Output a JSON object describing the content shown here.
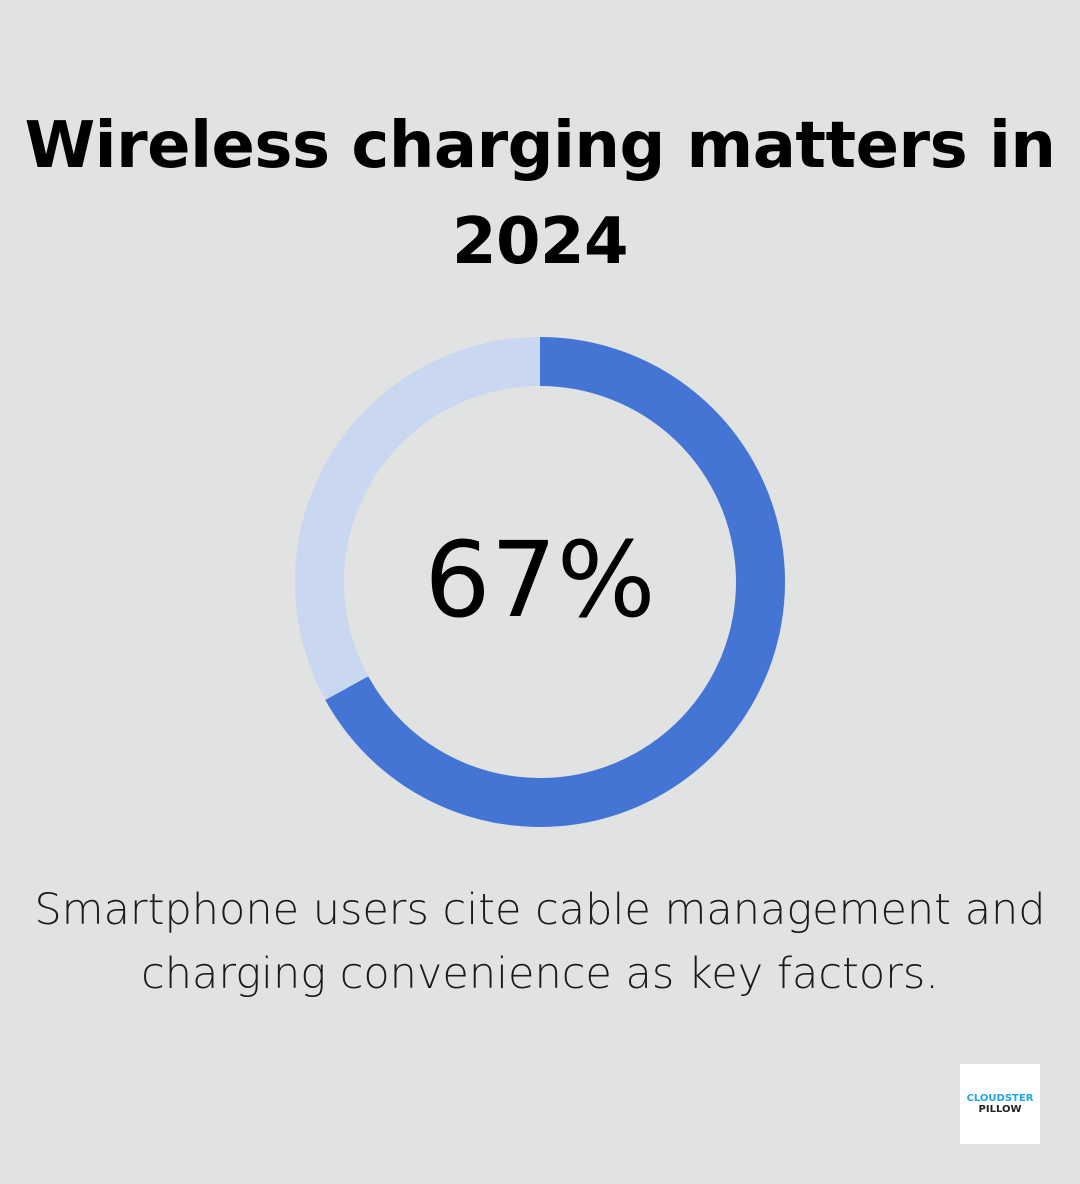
{
  "title": "Wireless charging matters in 2024",
  "caption": "Smartphone users cite cable management and charging convenience as key factors.",
  "logo": {
    "text": "CLOUDSTER PILLOW",
    "line1": "CLOUDSTER",
    "line2": "PILLOW"
  },
  "chart_data": {
    "type": "pie",
    "variant": "donut",
    "center_label": "67%",
    "values": [
      67,
      33
    ],
    "colors": {
      "value": "#4575d4",
      "remainder": "#c9d7f1",
      "background": "#e1e3e2"
    }
  }
}
